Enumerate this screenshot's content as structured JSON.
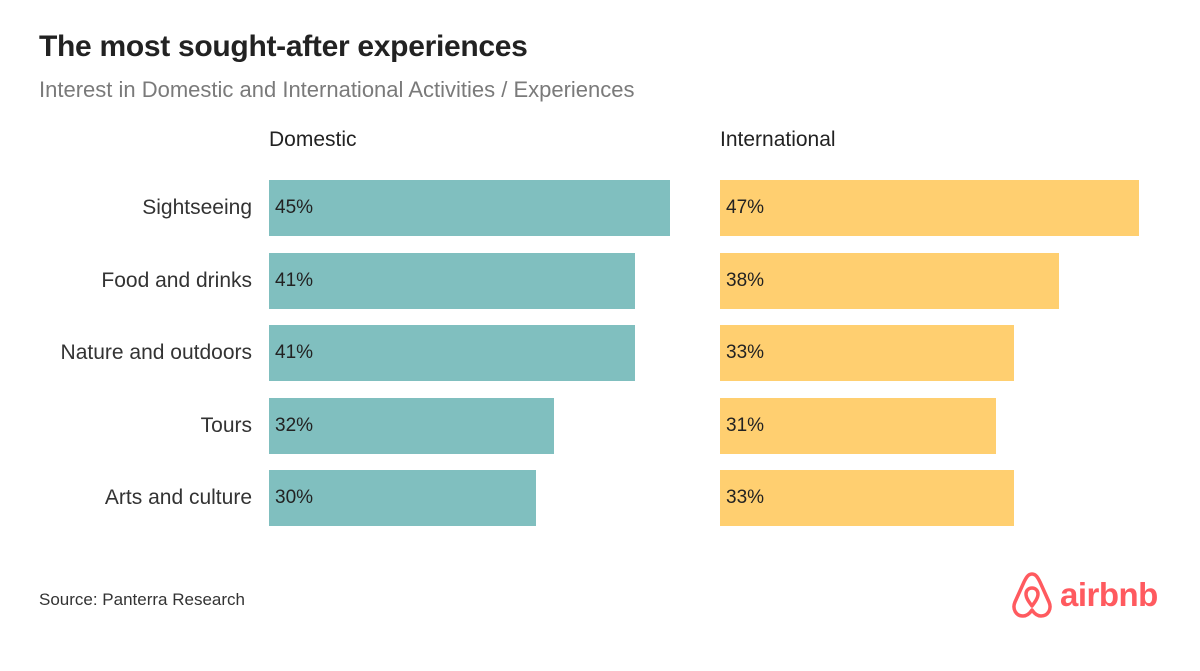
{
  "chart_data": {
    "type": "bar",
    "orientation": "horizontal",
    "title": "The most sought-after experiences",
    "subtitle": "Interest in Domestic and International Activities / Experiences",
    "categories": [
      "Sightseeing",
      "Food and drinks",
      "Nature and outdoors",
      "Tours",
      "Arts and culture"
    ],
    "series": [
      {
        "name": "Domestic",
        "values": [
          45,
          41,
          41,
          32,
          30
        ],
        "labels": [
          "45%",
          "41%",
          "41%",
          "32%",
          "30%"
        ],
        "color": "#80bfbf"
      },
      {
        "name": "International",
        "values": [
          47,
          38,
          33,
          31,
          33
        ],
        "labels": [
          "47%",
          "38%",
          "33%",
          "31%",
          "33%"
        ],
        "color": "#ffcf70"
      }
    ],
    "xlim": [
      0,
      47
    ],
    "grid": false,
    "legend": "none"
  },
  "footer": {
    "source": "Source: Panterra Research",
    "logo_text": "airbnb",
    "logo_color": "#ff5a5f",
    "logo_icon": "airbnb-belo-icon"
  }
}
